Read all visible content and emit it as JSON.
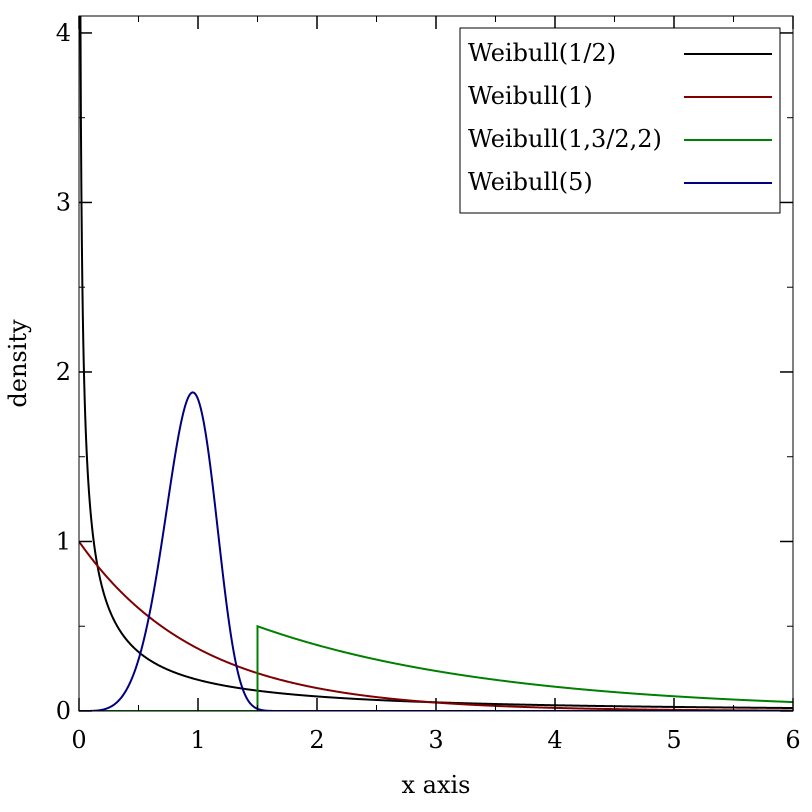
{
  "chart_data": {
    "type": "line",
    "title": "",
    "xlabel": "x axis",
    "ylabel": "density",
    "xlim": [
      0,
      6
    ],
    "ylim": [
      0,
      4.1
    ],
    "x_ticks": [
      0,
      1,
      2,
      3,
      4,
      5,
      6
    ],
    "x_tick_labels": [
      "0",
      "1",
      "2",
      "3",
      "4",
      "5",
      "6"
    ],
    "y_ticks": [
      0,
      1,
      2,
      3,
      4
    ],
    "y_tick_labels": [
      "0",
      "1",
      "2",
      "3",
      "4"
    ],
    "grid": false,
    "legend_position": "top-right",
    "series": [
      {
        "name": "Weibull(1/2)",
        "color": "#000000",
        "dist": "weibull",
        "shape": 0.5,
        "scale": 1,
        "location": 0
      },
      {
        "name": "Weibull(1)",
        "color": "#800000",
        "dist": "weibull",
        "shape": 1,
        "scale": 1,
        "location": 0
      },
      {
        "name": "Weibull(1,3/2,2)",
        "color": "#008000",
        "dist": "weibull",
        "shape": 1,
        "scale": 2,
        "location": 1.5
      },
      {
        "name": "Weibull(5)",
        "color": "#000080",
        "dist": "weibull",
        "shape": 5,
        "scale": 1,
        "location": 0
      }
    ]
  }
}
